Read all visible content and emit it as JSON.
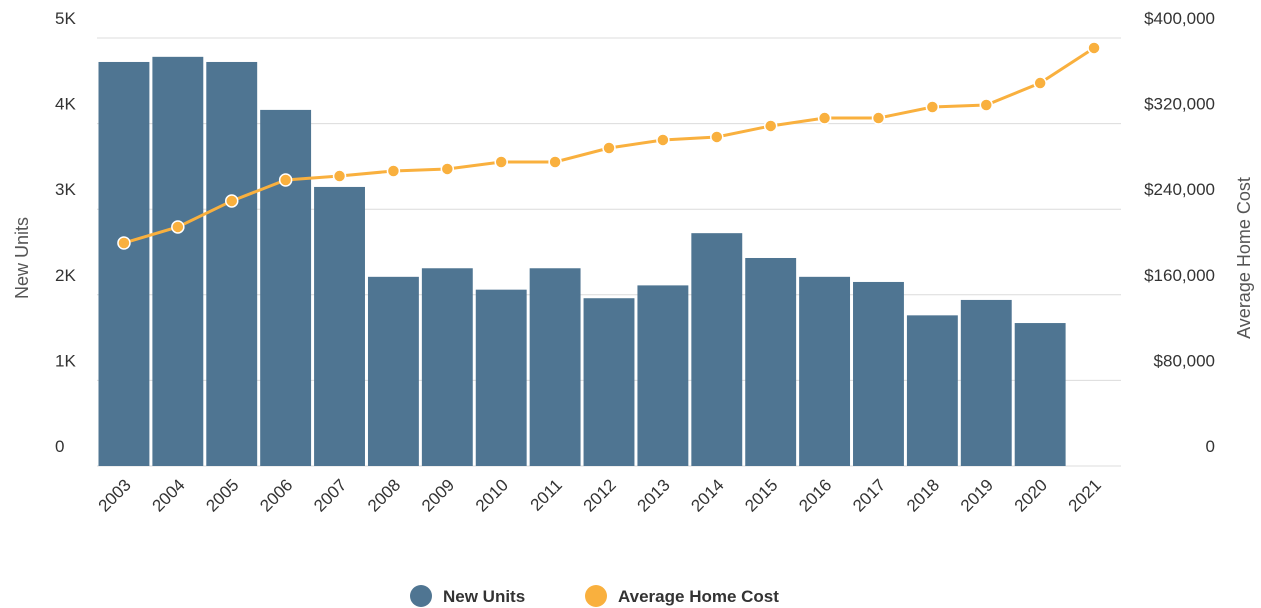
{
  "chart_data": {
    "type": "bar_line",
    "categories": [
      "2003",
      "2004",
      "2005",
      "2006",
      "2007",
      "2008",
      "2009",
      "2010",
      "2011",
      "2012",
      "2013",
      "2014",
      "2015",
      "2016",
      "2017",
      "2018",
      "2019",
      "2020",
      "2021"
    ],
    "series": [
      {
        "name": "New Units",
        "type": "bar",
        "color": "#4f7592",
        "axis": "y",
        "values": [
          4720,
          4780,
          4720,
          4160,
          3260,
          2210,
          2310,
          2060,
          2310,
          1960,
          2110,
          2720,
          2430,
          2210,
          2150,
          1760,
          1940,
          1670,
          null
        ]
      },
      {
        "name": "Average Home Cost",
        "type": "line",
        "color": "#f9b03e",
        "axis": "y2",
        "values": [
          208400,
          223400,
          247700,
          267300,
          271000,
          275700,
          277600,
          284100,
          284100,
          297200,
          304700,
          307500,
          317800,
          325200,
          325200,
          335500,
          337400,
          357900,
          390700
        ]
      }
    ],
    "ylabel": "New Units",
    "y2label": "Average Home Cost",
    "ylim": [
      0,
      5000
    ],
    "yticks": [
      0,
      {
        "value": 1000,
        "label": "1K"
      },
      {
        "value": 2000,
        "label": "2K"
      },
      {
        "value": 3000,
        "label": "3K"
      },
      {
        "value": 4000,
        "label": "4K"
      },
      {
        "value": 5000,
        "label": "5K"
      }
    ],
    "y2lim": [
      0,
      400000
    ],
    "y2ticks": [
      0,
      {
        "value": 80000,
        "label": "$80,000"
      },
      {
        "value": 160000,
        "label": "$160,000"
      },
      {
        "value": 240000,
        "label": "$240,000"
      },
      {
        "value": 320000,
        "label": "$320,000"
      },
      {
        "value": 400000,
        "label": "$400,000"
      }
    ],
    "grid": true,
    "legend": "bottom"
  }
}
